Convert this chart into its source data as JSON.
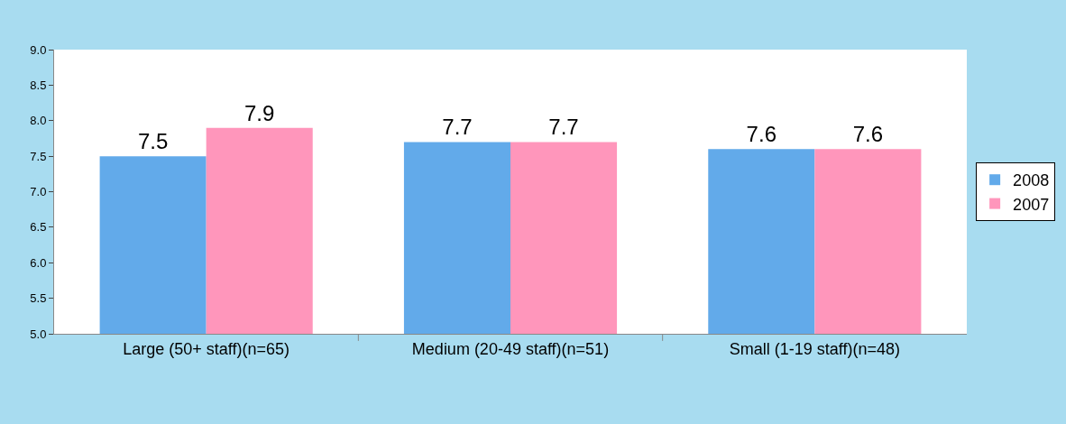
{
  "chart_data": {
    "type": "bar",
    "categories": [
      "Large (50+ staff)(n=65)",
      "Medium (20-49 staff)(n=51)",
      "Small (1-19 staff)(n=48)"
    ],
    "series": [
      {
        "name": "2008",
        "color": "#62aaea",
        "values": [
          7.5,
          7.7,
          7.6
        ]
      },
      {
        "name": "2007",
        "color": "#ff96bb",
        "values": [
          7.9,
          7.7,
          7.6
        ]
      }
    ],
    "ylim": [
      5,
      9
    ],
    "yticks": [
      {
        "value": 5,
        "label": "5.0"
      },
      {
        "value": 5.5,
        "label": "5.5"
      },
      {
        "value": 6,
        "label": "6.0"
      },
      {
        "value": 6.5,
        "label": "6.5"
      },
      {
        "value": 7,
        "label": "7.0"
      },
      {
        "value": 7.5,
        "label": "7.5"
      },
      {
        "value": 8,
        "label": "8.0"
      },
      {
        "value": 8.5,
        "label": "8.5"
      },
      {
        "value": 9,
        "label": "9.0"
      }
    ],
    "data_labels": true,
    "legend": "right"
  }
}
